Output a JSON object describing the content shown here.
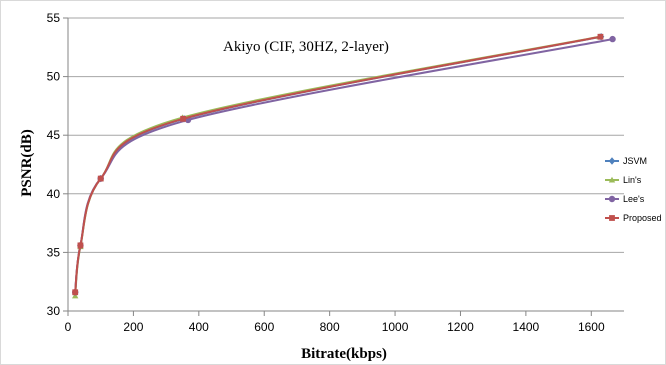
{
  "chart_data": {
    "type": "line",
    "title": "Akiyo (CIF, 30HZ, 2-layer)",
    "xlabel": "Bitrate(kbps)",
    "ylabel": "PSNR(dB)",
    "xlim": [
      0,
      1700
    ],
    "ylim": [
      30,
      55
    ],
    "xticks": [
      0,
      200,
      400,
      600,
      800,
      1000,
      1200,
      1400,
      1600
    ],
    "yticks": [
      30,
      35,
      40,
      45,
      50,
      55
    ],
    "grid": "horizontal",
    "legend_position": "right",
    "series": [
      {
        "name": "JSVM",
        "color": "#4f81bd",
        "marker": "diamond",
        "x": [
          22,
          38,
          100,
          355,
          1630
        ],
        "y": [
          31.6,
          35.6,
          41.3,
          46.4,
          53.4
        ]
      },
      {
        "name": "Lin's",
        "color": "#9bbb59",
        "marker": "triangle",
        "x": [
          22,
          38,
          100,
          350,
          1625
        ],
        "y": [
          31.3,
          35.5,
          41.3,
          46.5,
          53.4
        ]
      },
      {
        "name": "Lee's",
        "color": "#8064a2",
        "marker": "circle",
        "x": [
          22,
          38,
          100,
          367,
          1665
        ],
        "y": [
          31.6,
          35.6,
          41.3,
          46.3,
          53.2
        ]
      },
      {
        "name": "Proposed",
        "color": "#c0504d",
        "marker": "square",
        "x": [
          22,
          38,
          100,
          352,
          1628
        ],
        "y": [
          31.6,
          35.6,
          41.3,
          46.4,
          53.4
        ]
      }
    ]
  }
}
